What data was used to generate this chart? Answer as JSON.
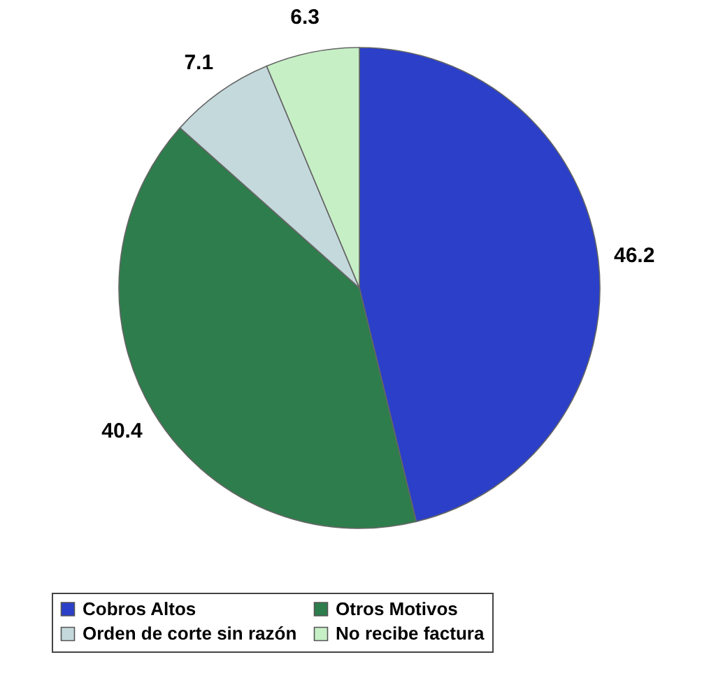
{
  "chart_data": {
    "type": "pie",
    "categories": [
      "Cobros Altos",
      "Otros Motivos",
      "Orden de corte sin razón",
      "No recibe factura"
    ],
    "values": [
      46.2,
      40.4,
      7.1,
      6.3
    ],
    "colors": [
      "#2b3fc8",
      "#2e7d4c",
      "#c4d9dc",
      "#c6efc6"
    ],
    "data_labels": true,
    "legend": "bottom"
  }
}
